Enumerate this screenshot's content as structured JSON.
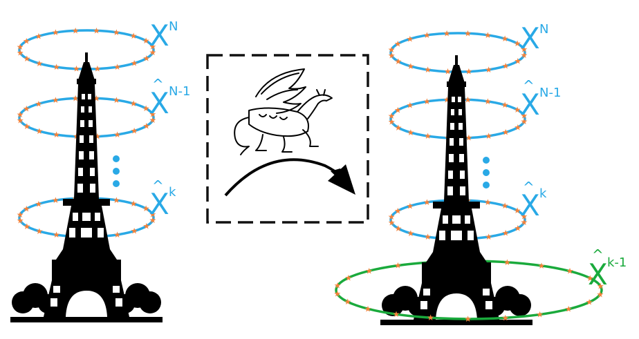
{
  "colors": {
    "blue": "#29a9e6",
    "green": "#1aaa3c",
    "orange": "#f5823a",
    "tower": "#000000",
    "dash_box": "#111111"
  },
  "left_panel": {
    "rings": [
      {
        "symbol": "X",
        "superscript": "N",
        "hat": false
      },
      {
        "symbol": "X",
        "superscript": "N-1",
        "hat": true
      },
      {
        "symbol": "X",
        "superscript": "k",
        "hat": true
      }
    ],
    "ellipsis_icon": "vertical-dots-icon",
    "tower_icon": "eiffel-tower-icon"
  },
  "center_panel": {
    "dragon_icon": "dragon-icon",
    "arrow_icon": "curved-arrow-icon"
  },
  "right_panel": {
    "rings": [
      {
        "symbol": "X",
        "superscript": "N",
        "hat": false
      },
      {
        "symbol": "X",
        "superscript": "N-1",
        "hat": true
      },
      {
        "symbol": "X",
        "superscript": "k",
        "hat": true
      }
    ],
    "new_ring": {
      "symbol": "X",
      "superscript": "k-1",
      "hat": true
    },
    "ellipsis_icon": "vertical-dots-icon",
    "tower_icon": "eiffel-tower-icon"
  }
}
